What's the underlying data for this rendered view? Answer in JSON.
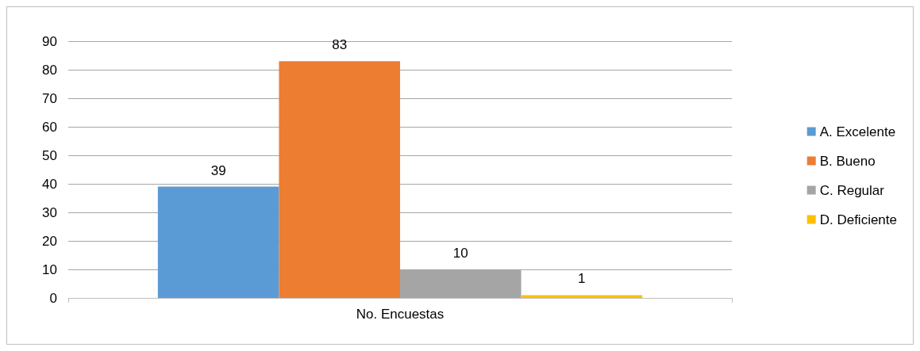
{
  "chart_data": {
    "type": "bar",
    "categories": [
      "No. Encuestas"
    ],
    "series": [
      {
        "name": "A. Excelente",
        "color": "#5b9bd5",
        "values": [
          39
        ]
      },
      {
        "name": "B. Bueno",
        "color": "#ed7d31",
        "values": [
          83
        ]
      },
      {
        "name": "C. Regular",
        "color": "#a5a5a5",
        "values": [
          10
        ]
      },
      {
        "name": "D. Deficiente",
        "color": "#ffc000",
        "values": [
          1
        ]
      }
    ],
    "ylim": [
      0,
      90
    ],
    "yticks": [
      0,
      10,
      20,
      30,
      40,
      50,
      60,
      70,
      80,
      90
    ],
    "grid": "y",
    "legend": "right",
    "data_labels": true
  }
}
